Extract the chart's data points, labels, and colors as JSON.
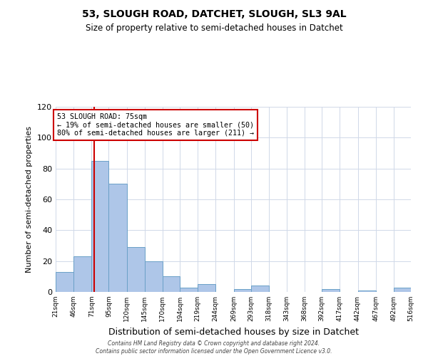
{
  "title": "53, SLOUGH ROAD, DATCHET, SLOUGH, SL3 9AL",
  "subtitle": "Size of property relative to semi-detached houses in Datchet",
  "xlabel": "Distribution of semi-detached houses by size in Datchet",
  "ylabel": "Number of semi-detached properties",
  "bin_edges": [
    21,
    46,
    71,
    95,
    120,
    145,
    170,
    194,
    219,
    244,
    269,
    293,
    318,
    343,
    368,
    392,
    417,
    442,
    467,
    492,
    516
  ],
  "bin_counts": [
    13,
    23,
    85,
    70,
    29,
    20,
    10,
    3,
    5,
    0,
    2,
    4,
    0,
    0,
    0,
    2,
    0,
    1,
    0,
    3
  ],
  "bar_color": "#aec6e8",
  "bar_edge_color": "#6aa0c7",
  "property_size": 75,
  "vline_color": "#cc0000",
  "annotation_text_line1": "53 SLOUGH ROAD: 75sqm",
  "annotation_text_line2": "← 19% of semi-detached houses are smaller (50)",
  "annotation_text_line3": "80% of semi-detached houses are larger (211) →",
  "annotation_box_edge_color": "#cc0000",
  "ylim": [
    0,
    120
  ],
  "yticks": [
    0,
    20,
    40,
    60,
    80,
    100,
    120
  ],
  "tick_labels": [
    "21sqm",
    "46sqm",
    "71sqm",
    "95sqm",
    "120sqm",
    "145sqm",
    "170sqm",
    "194sqm",
    "219sqm",
    "244sqm",
    "269sqm",
    "293sqm",
    "318sqm",
    "343sqm",
    "368sqm",
    "392sqm",
    "417sqm",
    "442sqm",
    "467sqm",
    "492sqm",
    "516sqm"
  ],
  "footer_line1": "Contains HM Land Registry data © Crown copyright and database right 2024.",
  "footer_line2": "Contains public sector information licensed under the Open Government Licence v3.0.",
  "background_color": "#ffffff",
  "grid_color": "#d0d8e8"
}
